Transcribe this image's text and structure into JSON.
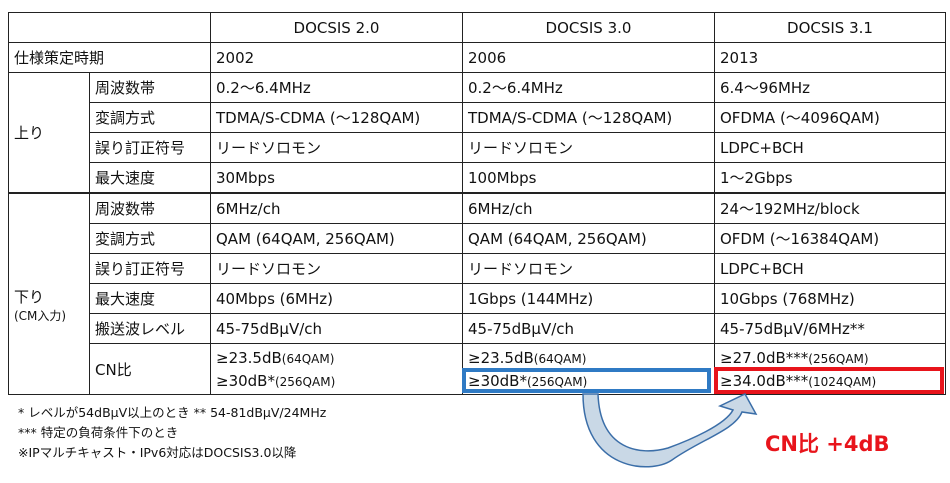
{
  "header": [
    "",
    "DOCSIS 2.0",
    "DOCSIS 3.0",
    "DOCSIS 3.1"
  ],
  "spec_row": {
    "label": "仕様策定時期",
    "values": [
      "2002",
      "2006",
      "2013"
    ]
  },
  "upstream": {
    "label": "上り",
    "rows": [
      {
        "label": "周波数帯",
        "values": [
          "0.2～6.4MHz",
          "0.2～6.4MHz",
          "6.4～96MHz"
        ]
      },
      {
        "label": "変調方式",
        "values": [
          "TDMA/S-CDMA (～128QAM)",
          "TDMA/S-CDMA (～128QAM)",
          "OFDMA (～4096QAM)"
        ]
      },
      {
        "label": "誤り訂正符号",
        "values": [
          "リードソロモン",
          "リードソロモン",
          "LDPC+BCH"
        ]
      },
      {
        "label": "最大速度",
        "values": [
          "30Mbps",
          "100Mbps",
          "1～2Gbps"
        ]
      }
    ]
  },
  "downstream": {
    "label": "下り",
    "sublabel": "(CM入力)",
    "rows": [
      {
        "label": "周波数帯",
        "values": [
          "6MHz/ch",
          "6MHz/ch",
          "24～192MHz/block"
        ]
      },
      {
        "label": "変調方式",
        "values": [
          "QAM (64QAM, 256QAM)",
          "QAM (64QAM, 256QAM)",
          "OFDM (～16384QAM)"
        ]
      },
      {
        "label": "誤り訂正符号",
        "values": [
          "リードソロモン",
          "リードソロモン",
          "LDPC+BCH"
        ]
      },
      {
        "label": "最大速度",
        "values": [
          "40Mbps (6MHz)",
          "1Gbps (144MHz)",
          "10Gbps (768MHz)"
        ]
      },
      {
        "label": "搬送波レベル",
        "values": [
          "45-75dBμV/ch",
          "45-75dBμV/ch",
          "45-75dBμV/6MHz**"
        ]
      }
    ],
    "cn": {
      "label": "CN比",
      "values": [
        [
          {
            "main": "≥23.5dB",
            "note": "(64QAM)"
          },
          {
            "main": "≥30dB*",
            "note": "(256QAM)"
          }
        ],
        [
          {
            "main": "≥23.5dB",
            "note": "(64QAM)"
          },
          {
            "main": "≥30dB*",
            "note": "(256QAM)"
          }
        ],
        [
          {
            "main": "≥27.0dB***",
            "note": "(256QAM)"
          },
          {
            "main": "≥34.0dB***",
            "note": "(1024QAM)"
          }
        ]
      ]
    }
  },
  "footnotes": [
    "* レベルが54dBμV以上のとき  ** 54-81dBμV/24MHz",
    "*** 特定の負荷条件下のとき",
    "※IPマルチキャスト・IPv6対応はDOCSIS3.0以降"
  ],
  "callout": "CN比 +4dB",
  "colors": {
    "highlight_from": "#2f7ac4",
    "highlight_to": "#e8141b",
    "arrow": "#c9d8e6"
  }
}
